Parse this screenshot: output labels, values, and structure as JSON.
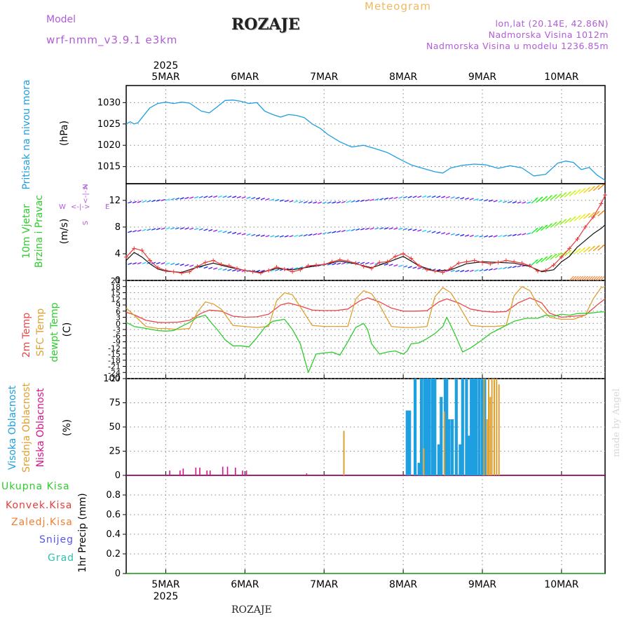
{
  "header": {
    "model_label": "Model",
    "model_name": "wrf-nmm_v3.9.1  e3km",
    "station": "ROZAJE",
    "product": "Meteogram",
    "lonlat": "lon,lat (20.14E, 42.86N)",
    "elevation": "Nadmorska Visina 1012m",
    "elevation_model": "Nadmorska Visina u modelu 1236.85m"
  },
  "footer": {
    "station": "ROZAJE",
    "watermark": "made by Angel"
  },
  "time_axis": {
    "year": "2025",
    "days": [
      "5MAR",
      "6MAR",
      "7MAR",
      "8MAR",
      "9MAR",
      "10MAR"
    ],
    "start_day_offset": -0.5,
    "end_day_offset": 5.55
  },
  "colors": {
    "pressure": "#1e9fe0",
    "wind_speed": "#e83a3a",
    "wind_speed_alt": "#111111",
    "t2m": "#e84848",
    "sfc": "#e0a030",
    "dew": "#2ecc2e",
    "high_cloud": "#1e9fe0",
    "mid_cloud": "#e0a030",
    "low_cloud": "#d6158a",
    "precip_total": "#2ecc2e",
    "precip_conv": "#e83a3a",
    "precip_frozen": "#f08030",
    "precip_snow": "#5555ee",
    "precip_hail": "#30c0b0"
  },
  "chart_data": [
    {
      "type": "line",
      "title": "Pritisak na nivou mora",
      "ylabel": "(hPa)",
      "ylim": [
        1011,
        1034
      ],
      "yticks": [
        "1015",
        "1020",
        "1025",
        "1030"
      ],
      "series": [
        {
          "name": "Pritisak na nivou mora",
          "t": [
            -0.5,
            -0.45,
            -0.4,
            -0.35,
            -0.3,
            -0.2,
            -0.1,
            0,
            0.1,
            0.2,
            0.3,
            0.45,
            0.55,
            0.65,
            0.75,
            0.85,
            0.95,
            1.05,
            1.15,
            1.25,
            1.35,
            1.45,
            1.55,
            1.65,
            1.75,
            1.85,
            1.95,
            2.05,
            2.2,
            2.35,
            2.5,
            2.65,
            2.8,
            2.95,
            3.1,
            3.25,
            3.4,
            3.5,
            3.6,
            3.75,
            3.9,
            4.05,
            4.2,
            4.35,
            4.5,
            4.65,
            4.8,
            4.95,
            5.05,
            5.15,
            5.25,
            5.35,
            5.45,
            5.55
          ],
          "values": [
            1025,
            1025.5,
            1025,
            1025.3,
            1026.5,
            1028.8,
            1029.8,
            1030.1,
            1029.8,
            1030.1,
            1029.9,
            1028,
            1027.6,
            1029,
            1030.5,
            1030.6,
            1030.3,
            1029.8,
            1030,
            1028,
            1027.2,
            1026.6,
            1027.2,
            1027,
            1026.5,
            1025,
            1024,
            1022.5,
            1020.8,
            1019.6,
            1020,
            1019.2,
            1018.3,
            1016.8,
            1015.4,
            1014.6,
            1013.8,
            1013.5,
            1014.7,
            1015.3,
            1015.6,
            1015.4,
            1014.6,
            1015.2,
            1014.7,
            1012.8,
            1013.2,
            1015.8,
            1016.3,
            1016,
            1014.3,
            1014.8,
            1013,
            1011.8
          ]
        }
      ]
    },
    {
      "type": "line",
      "title": "10m Vjetar Brzina i Pravac",
      "ylabel": "(m/s)",
      "ylim": [
        0,
        14.5
      ],
      "yticks": [
        "0",
        "4",
        "8",
        "12"
      ],
      "compass": {
        "n": "N",
        "s": "S",
        "e": "E",
        "w": "W",
        "arrow": "<-|->"
      },
      "series": [
        {
          "name": "Brzina (red)",
          "t": [
            -0.5,
            -0.4,
            -0.3,
            -0.2,
            -0.1,
            0,
            0.1,
            0.2,
            0.3,
            0.4,
            0.5,
            0.6,
            0.7,
            0.8,
            0.9,
            1.0,
            1.1,
            1.2,
            1.3,
            1.4,
            1.5,
            1.6,
            1.7,
            1.8,
            1.9,
            2.0,
            2.1,
            2.2,
            2.3,
            2.4,
            2.5,
            2.6,
            2.7,
            2.8,
            2.9,
            3.0,
            3.1,
            3.2,
            3.3,
            3.4,
            3.5,
            3.6,
            3.7,
            3.8,
            3.9,
            4.0,
            4.1,
            4.2,
            4.3,
            4.4,
            4.5,
            4.6,
            4.7,
            4.8,
            4.9,
            5.0,
            5.1,
            5.2,
            5.3,
            5.4,
            5.5,
            5.55
          ],
          "values": [
            3.5,
            4.8,
            4.5,
            3.0,
            1.9,
            1.5,
            1.3,
            1.1,
            1.3,
            2.1,
            2.7,
            3.0,
            2.4,
            2.2,
            1.8,
            1.5,
            1.3,
            1.1,
            1.5,
            2.0,
            1.7,
            1.3,
            1.6,
            2.2,
            2.3,
            2.4,
            2.8,
            3.1,
            2.9,
            2.6,
            2.1,
            1.8,
            2.7,
            2.8,
            3.6,
            4.0,
            3.3,
            2.2,
            1.6,
            1.4,
            1.2,
            1.8,
            2.6,
            2.8,
            3.0,
            2.7,
            2.5,
            2.7,
            3.0,
            2.8,
            2.6,
            2.2,
            1.4,
            1.5,
            2.3,
            3.5,
            4.8,
            6.2,
            8.0,
            9.5,
            11.5,
            12.8
          ]
        },
        {
          "name": "Brzina (black)",
          "t": [
            -0.5,
            -0.4,
            -0.3,
            -0.2,
            -0.1,
            0,
            0.2,
            0.4,
            0.6,
            0.8,
            1.0,
            1.2,
            1.4,
            1.6,
            1.8,
            2.0,
            2.2,
            2.4,
            2.6,
            2.8,
            3.0,
            3.2,
            3.4,
            3.6,
            3.8,
            4.0,
            4.2,
            4.4,
            4.6,
            4.75,
            4.9,
            5.0,
            5.1,
            5.2,
            5.3,
            5.4,
            5.5,
            5.55
          ],
          "values": [
            3.0,
            4.2,
            3.5,
            2.5,
            1.7,
            1.4,
            1.2,
            2.0,
            2.6,
            2.0,
            1.5,
            1.2,
            1.8,
            1.6,
            2.0,
            2.4,
            2.9,
            2.5,
            1.9,
            2.7,
            3.6,
            2.2,
            1.4,
            1.6,
            2.5,
            2.8,
            2.7,
            2.6,
            2.1,
            1.3,
            1.6,
            2.8,
            3.6,
            5.0,
            6.0,
            7.0,
            7.8,
            8.3
          ]
        }
      ]
    },
    {
      "type": "line",
      "title": "2m Temp / SFC Temp / dewpt Temp",
      "ylabel": "(C)",
      "ylim": [
        -27,
        21
      ],
      "yticks": [
        "-27",
        "-24",
        "-21",
        "-18",
        "-15",
        "-12",
        "-9",
        "-6",
        "-3",
        "0",
        "3",
        "6",
        "9",
        "12",
        "15",
        "18",
        "21"
      ],
      "series": [
        {
          "name": "2m Temp",
          "t": [
            -0.5,
            -0.4,
            -0.25,
            -0.1,
            0.0,
            0.15,
            0.3,
            0.45,
            0.55,
            0.7,
            0.85,
            1.0,
            1.15,
            1.3,
            1.45,
            1.55,
            1.7,
            1.85,
            2.0,
            2.15,
            2.3,
            2.45,
            2.55,
            2.7,
            2.85,
            3.0,
            3.15,
            3.3,
            3.45,
            3.55,
            3.7,
            3.85,
            4.0,
            4.15,
            4.3,
            4.45,
            4.6,
            4.75,
            4.85,
            5.0,
            5.15,
            5.3,
            5.45,
            5.55
          ],
          "values": [
            5.5,
            4.2,
            1.5,
            0.5,
            0.4,
            0.6,
            1.5,
            5.0,
            6.5,
            6.0,
            3.5,
            3.0,
            3.2,
            4.5,
            9.0,
            10.0,
            8.5,
            6.5,
            6.3,
            6.3,
            7.0,
            11.0,
            12.5,
            10.5,
            7.5,
            6.0,
            6.0,
            6.2,
            10.5,
            12.0,
            10.0,
            7.0,
            6.0,
            5.5,
            5.8,
            10.0,
            12.5,
            10.0,
            5.0,
            3.0,
            3.5,
            4.0,
            9.0,
            12.0
          ]
        },
        {
          "name": "SFC Temp",
          "t": [
            -0.5,
            -0.4,
            -0.25,
            -0.1,
            0.0,
            0.15,
            0.3,
            0.4,
            0.5,
            0.6,
            0.7,
            0.85,
            1.0,
            1.15,
            1.3,
            1.4,
            1.5,
            1.6,
            1.7,
            1.85,
            2.0,
            2.15,
            2.3,
            2.4,
            2.5,
            2.6,
            2.7,
            2.85,
            3.0,
            3.15,
            3.3,
            3.4,
            3.5,
            3.6,
            3.7,
            3.85,
            4.0,
            4.15,
            4.3,
            4.4,
            4.5,
            4.6,
            4.7,
            4.85,
            5.0,
            5.15,
            5.3,
            5.4,
            5.5,
            5.55
          ],
          "values": [
            7.5,
            4.0,
            -1.5,
            -2.5,
            -2.5,
            -3.0,
            -2.5,
            5.5,
            10.5,
            9.5,
            7.0,
            -1.0,
            -1.5,
            -2.0,
            -1.5,
            11.0,
            15.0,
            14.0,
            8.0,
            -1.0,
            -1.5,
            -1.5,
            -1.5,
            12.0,
            16.0,
            14.5,
            9.0,
            -1.5,
            -2.0,
            -2.0,
            -1.5,
            13.0,
            17.5,
            15.0,
            9.0,
            -1.0,
            -1.5,
            -1.5,
            -1.0,
            13.5,
            18.0,
            16.0,
            9.0,
            3.0,
            2.0,
            2.0,
            4.0,
            12.0,
            17.5,
            18.0
          ]
        },
        {
          "name": "dewpt Temp",
          "t": [
            -0.5,
            -0.4,
            -0.25,
            -0.1,
            0.0,
            0.1,
            0.2,
            0.3,
            0.4,
            0.5,
            0.55,
            0.65,
            0.75,
            0.85,
            0.95,
            1.05,
            1.15,
            1.25,
            1.35,
            1.5,
            1.6,
            1.7,
            1.8,
            1.9,
            2.0,
            2.1,
            2.2,
            2.3,
            2.4,
            2.5,
            2.55,
            2.6,
            2.7,
            2.8,
            2.9,
            3.0,
            3.05,
            3.1,
            3.2,
            3.3,
            3.4,
            3.5,
            3.55,
            3.65,
            3.75,
            3.85,
            4.0,
            4.1,
            4.2,
            4.3,
            4.4,
            4.5,
            4.55,
            4.7,
            4.8,
            4.9,
            5.0,
            5.1,
            5.2,
            5.35,
            5.5,
            5.55
          ],
          "values": [
            0.5,
            -1.5,
            -2.5,
            -3.5,
            -3.8,
            -3.5,
            -1.5,
            0.5,
            3.0,
            4.0,
            1.5,
            -3.0,
            -8.0,
            -11.0,
            -11.0,
            -11.5,
            -7.0,
            -2.0,
            1.0,
            2.0,
            -3.0,
            -10.0,
            -24.0,
            -15.0,
            -14.5,
            -14.0,
            -15.5,
            -9.0,
            -2.0,
            0.0,
            -3.0,
            -10.0,
            -15.0,
            -14.0,
            -13.5,
            -15.0,
            -13.5,
            -10.0,
            -9.5,
            -7.5,
            -5.0,
            -1.5,
            3.0,
            -5.0,
            -14.0,
            -12.0,
            -8.0,
            -5.0,
            -3.0,
            -1.0,
            1.0,
            2.0,
            2.5,
            2.5,
            4.0,
            3.5,
            4.5,
            4.0,
            4.8,
            5.0,
            5.6,
            5.6
          ]
        }
      ]
    },
    {
      "type": "bar",
      "title": "Visoka / Srednja / Niska Oblacnost",
      "ylabel": "(%)",
      "ylim": [
        0,
        100
      ],
      "yticks": [
        "0",
        "25",
        "50",
        "75",
        "100"
      ],
      "series": [
        {
          "name": "Visoka Oblacnost",
          "t": [
            3.05,
            3.08,
            3.15,
            3.2,
            3.23,
            3.27,
            3.3,
            3.33,
            3.37,
            3.4,
            3.45,
            3.48,
            3.53,
            3.55,
            3.58,
            3.62,
            3.67,
            3.72,
            3.75,
            3.8,
            3.83,
            3.86,
            3.89,
            3.92,
            3.96,
            4.0,
            4.03
          ],
          "values": [
            67,
            67,
            100,
            13,
            100,
            100,
            100,
            100,
            100,
            100,
            32,
            81,
            100,
            100,
            58,
            58,
            100,
            32,
            100,
            100,
            41,
            100,
            100,
            100,
            100,
            100,
            100
          ]
        },
        {
          "name": "Srednja Oblacnost",
          "t": [
            2.25,
            3.26,
            3.52,
            4.02,
            4.06,
            4.08,
            4.1,
            4.12,
            4.15,
            4.18,
            4.21
          ],
          "values": [
            46,
            28,
            66,
            100,
            58,
            100,
            81,
            100,
            100,
            100,
            94
          ]
        },
        {
          "name": "Niska Oblacnost",
          "t": [
            0.05,
            0.18,
            0.22,
            0.38,
            0.43,
            0.52,
            0.56,
            0.72,
            0.78,
            0.88,
            0.97,
            1.02,
            1.78
          ],
          "values": [
            5,
            5,
            7,
            8,
            8,
            5,
            5,
            9,
            9,
            8,
            5,
            5,
            2
          ]
        }
      ]
    },
    {
      "type": "line",
      "title": "1hr Precip",
      "ylabel": "1hr Precip (mm)",
      "ylim": [
        0,
        1
      ],
      "yticks": [
        "0",
        "0.2",
        "0.4",
        "0.6",
        "0.8"
      ],
      "legend": [
        "Ukupna Kisa",
        "Konvek.Kisa",
        "Zaledj.Kisa",
        "Snijeg",
        "Grad"
      ],
      "series": [
        {
          "name": "Ukupna Kisa",
          "t": [
            -0.5,
            5.55
          ],
          "values": [
            0,
            0
          ]
        }
      ]
    }
  ]
}
